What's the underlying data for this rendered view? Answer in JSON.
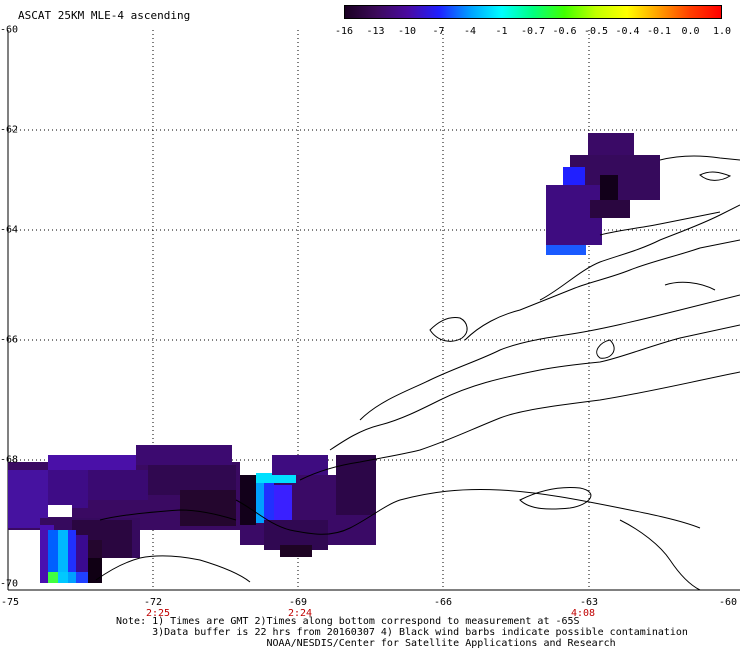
{
  "title": "ASCAT 25KM MLE-4 ascending",
  "colorbar": {
    "labels": [
      "-16",
      "-13",
      "-10",
      "-7",
      "-4",
      "-1",
      "-0.7",
      "-0.6",
      "-0.5",
      "-0.4",
      "-0.1",
      "0.0",
      "1.0"
    ],
    "colors": [
      "#1a0022",
      "#3c0a5a",
      "#4a0aa0",
      "#2020ff",
      "#00a0ff",
      "#00ffff",
      "#00ff80",
      "#40ff00",
      "#c0ff00",
      "#ffff00",
      "#ffa000",
      "#ff4000",
      "#ff0000"
    ]
  },
  "map": {
    "y_labels": [
      "-60",
      "-62",
      "-64",
      "-66",
      "-68",
      "-70"
    ],
    "x_labels": [
      "-75",
      "-72",
      "-69",
      "-66",
      "-63",
      "-60"
    ],
    "time_labels": [
      "2:25",
      "2:24",
      "4:08"
    ],
    "background_color": "#ffffff",
    "coast_color": "#000000",
    "grid_style": "dotted"
  },
  "notes": {
    "line1": "Note: 1) Times are GMT 2)Times along bottom correspond to measurement at -65S",
    "line2": "      3)Data buffer is 22 hrs from 20160307 4) Black wind barbs indicate possible contamination",
    "line3": "                         NOAA/NESDIS/Center for Satellite Applications and Research"
  }
}
